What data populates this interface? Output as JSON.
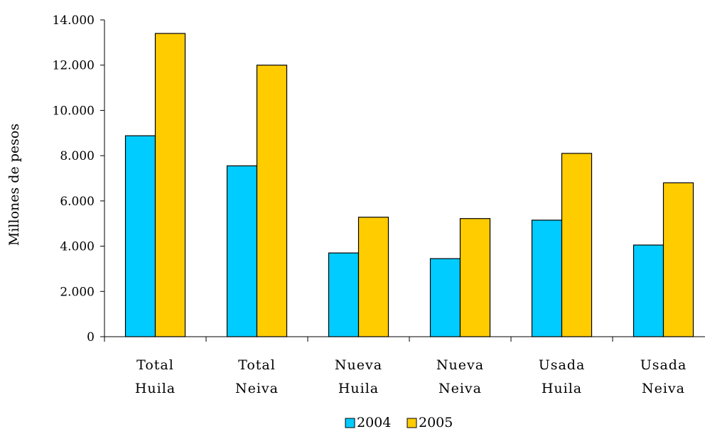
{
  "chart_data": {
    "type": "bar",
    "title": "",
    "ylabel": "Millones de pesos",
    "xlabel": "",
    "ylim": [
      0,
      14000
    ],
    "yticks": [
      0,
      2000,
      4000,
      6000,
      8000,
      10000,
      12000,
      14000
    ],
    "ytick_labels": [
      "0",
      "2.000",
      "4.000",
      "6.000",
      "8.000",
      "10.000",
      "12.000",
      "14.000"
    ],
    "categories": [
      [
        "Total",
        "Huila"
      ],
      [
        "Total",
        "Neiva"
      ],
      [
        "Nueva",
        "Huila"
      ],
      [
        "Nueva",
        "Neiva"
      ],
      [
        "Usada",
        "Huila"
      ],
      [
        "Usada",
        "Neiva"
      ]
    ],
    "series": [
      {
        "name": "2004",
        "color": "#00CCFF",
        "values": [
          8880,
          7550,
          3700,
          3450,
          5150,
          4050
        ]
      },
      {
        "name": "2005",
        "color": "#FFCC00",
        "values": [
          13400,
          12000,
          5280,
          5220,
          8100,
          6800
        ]
      }
    ],
    "grid": false,
    "legend": "bottom"
  }
}
